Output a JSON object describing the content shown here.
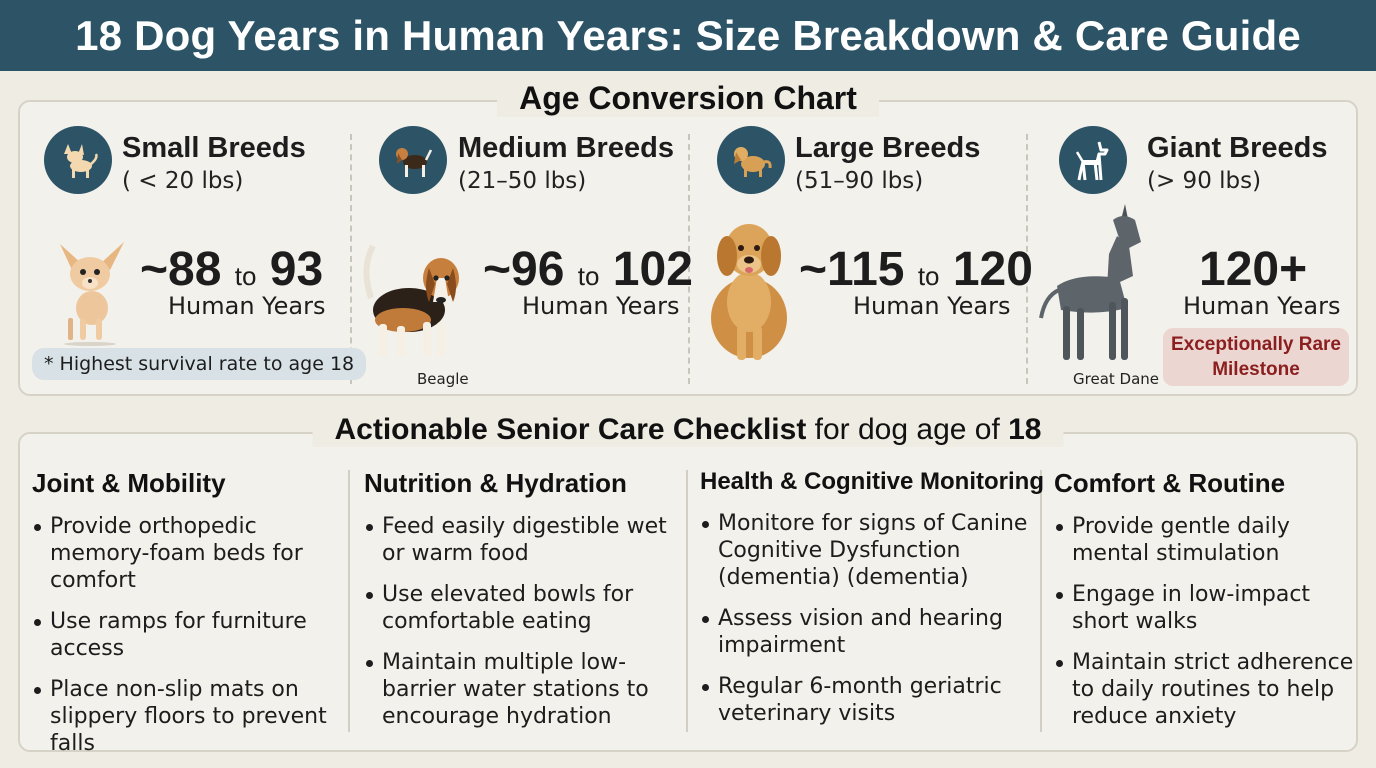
{
  "header": {
    "title": "18 Dog Years in Human Years: Size Breakdown & Care Guide"
  },
  "conversion": {
    "title": "Age Conversion Chart",
    "breeds": [
      {
        "name": "Small Breeds",
        "weight": "( < 20 lbs)",
        "range_low": "~88",
        "to": "to",
        "range_high": "93",
        "unit": "Human Years",
        "note": "* Highest survival rate to age 18",
        "icon": "chihuahua-icon"
      },
      {
        "name": "Medium Breeds",
        "weight": "(21–50 lbs)",
        "range_low": "~96",
        "to": "to",
        "range_high": "102",
        "unit": "Human Years",
        "caption": "Beagle",
        "icon": "beagle-icon"
      },
      {
        "name": "Large Breeds",
        "weight": "(51–90 lbs)",
        "range_low": "~115",
        "to": "to",
        "range_high": "120",
        "unit": "Human Years",
        "icon": "golden-retriever-icon"
      },
      {
        "name": "Giant Breeds",
        "weight": "(> 90 lbs)",
        "range": "120+",
        "unit": "Human Years",
        "caption": "Great Dane",
        "badge": "Exceptionally Rare Milestone",
        "icon": "great-dane-icon"
      }
    ]
  },
  "checklist": {
    "title_bold": "Actionable Senior Care Checklist",
    "title_light": " for dog age of ",
    "title_age": "18",
    "columns": [
      {
        "heading": "Joint & Mobility",
        "items": [
          "Provide orthopedic memory-foam beds for comfort",
          "Use ramps for furniture access",
          "Place non-slip mats on slippery floors to prevent falls"
        ]
      },
      {
        "heading": "Nutrition & Hydration",
        "items": [
          "Feed easily digestible wet or warm food",
          "Use elevated bowls for comfortable eating",
          "Maintain multiple low-barrier water stations to encourage hydration"
        ]
      },
      {
        "heading": "Health & Cognitive Monitoring",
        "items": [
          "Monitore for signs of Canine Cognitive Dysfunction (dementia) (dementia)",
          "Assess vision and hearing impairment",
          "Regular 6-month geriatric veterinary visits"
        ]
      },
      {
        "heading": "Comfort & Routine",
        "items": [
          "Provide gentle daily mental stimulation",
          "Engage in low-impact short walks",
          "Maintain strict adherence to daily routines to help reduce anxiety"
        ]
      }
    ]
  }
}
